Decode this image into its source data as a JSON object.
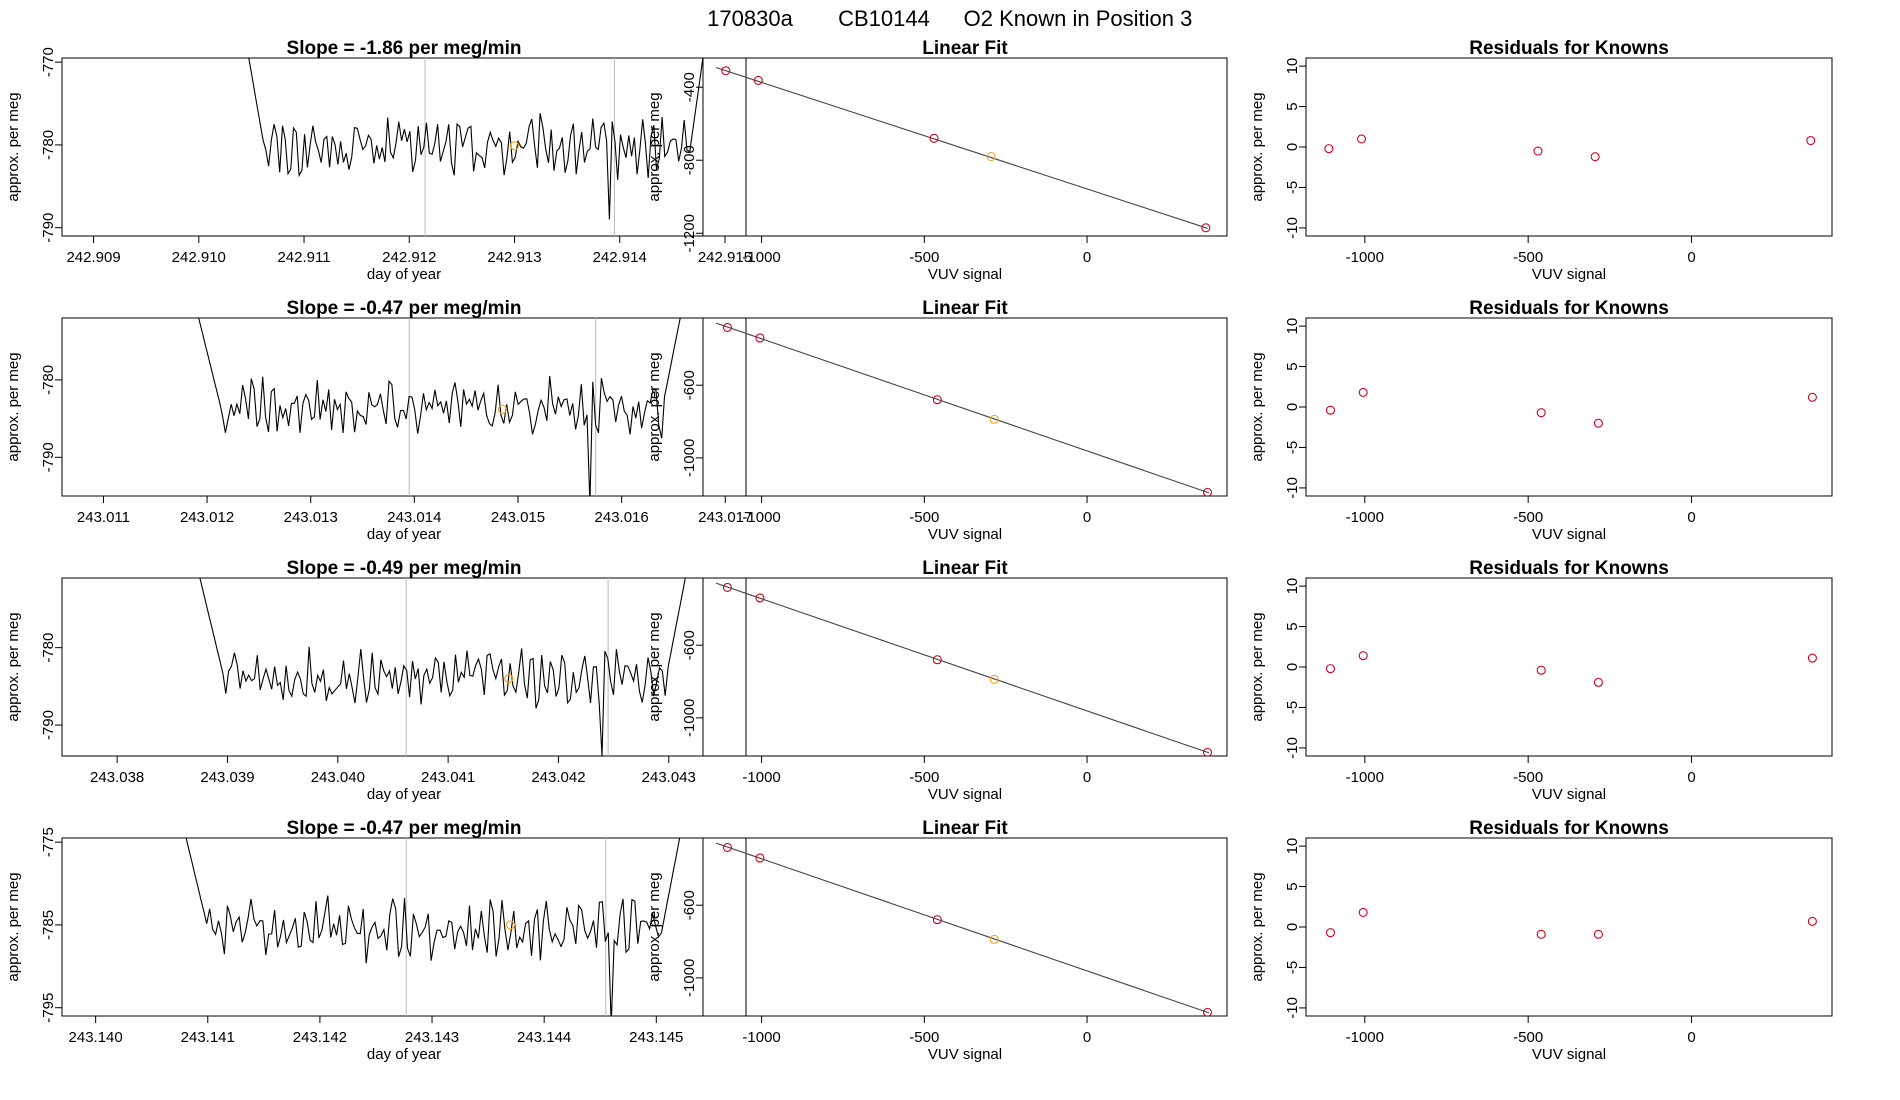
{
  "figure_title": {
    "run": "170830a",
    "cylinder": "CB10144",
    "description": "O2 Known in Position  3"
  },
  "colors": {
    "series_line": "#000000",
    "highlight_point": "#f5a623",
    "residual_point": "#d0021b",
    "fit_line": "#444444",
    "vertical_marker": "#bbbbbb"
  },
  "chart_data": [
    {
      "type": "line",
      "title": "Slope =  -1.86  per meg/min",
      "xlabel": "day of year",
      "ylabel": "approx. per meg",
      "xlim": [
        242.9087,
        242.9152
      ],
      "ylim": [
        -791,
        -769.5
      ],
      "xticks": [
        "242.909",
        "242.910",
        "242.911",
        "242.912",
        "242.913",
        "242.914",
        "242.915"
      ],
      "yticks": [
        "-790",
        "-780",
        "-770"
      ],
      "vlines": [
        242.91215,
        242.91395
      ],
      "highlight": {
        "x": 242.913,
        "y": -780.1
      },
      "trace": {
        "x_start": 242.9104,
        "x_end": 242.91485,
        "y_first": -764,
        "y_last": -764,
        "mean": -780.3,
        "noise": 2.6,
        "spike_at": 242.9139,
        "spike_value": -789,
        "n": 170
      }
    },
    {
      "type": "scatter",
      "title": "Linear Fit",
      "xlabel": "VUV signal",
      "ylabel": "approx. per meg",
      "xlim": [
        -1180,
        430
      ],
      "ylim": [
        -1215,
        -240
      ],
      "xticks": [
        "-1000",
        "-500",
        "0"
      ],
      "yticks": [
        "-400",
        "-800",
        "-1200"
      ],
      "points": [
        {
          "x": -1110,
          "y": -310,
          "highlight": false
        },
        {
          "x": -1010,
          "y": -363,
          "highlight": false
        },
        {
          "x": -470,
          "y": -680,
          "highlight": false
        },
        {
          "x": -295,
          "y": -780,
          "highlight": true
        },
        {
          "x": 365,
          "y": -1170,
          "highlight": false
        }
      ],
      "fit": [
        [
          -1140,
          -292
        ],
        [
          370,
          -1173
        ]
      ]
    },
    {
      "type": "scatter",
      "title": "Residuals for Knowns",
      "xlabel": "VUV signal",
      "ylabel": "approx. per meg",
      "xlim": [
        -1180,
        430
      ],
      "ylim": [
        -11,
        11
      ],
      "xticks": [
        "-1000",
        "-500",
        "0"
      ],
      "yticks": [
        "10",
        "5",
        "0",
        "-5",
        "-10"
      ],
      "points": [
        {
          "x": -1110,
          "y": -0.2
        },
        {
          "x": -1010,
          "y": 1.0
        },
        {
          "x": -470,
          "y": -0.5
        },
        {
          "x": -295,
          "y": -1.2
        },
        {
          "x": 365,
          "y": 0.8
        }
      ]
    },
    {
      "type": "line",
      "title": "Slope =  -0.47  per meg/min",
      "xlabel": "day of year",
      "ylabel": "approx. per meg",
      "xlim": [
        243.0106,
        243.0172
      ],
      "ylim": [
        -795,
        -772
      ],
      "xticks": [
        "243.011",
        "243.012",
        "243.013",
        "243.014",
        "243.015",
        "243.016",
        "243.017"
      ],
      "yticks": [
        "-790",
        "-780"
      ],
      "vlines": [
        243.01395,
        243.01575
      ],
      "highlight": {
        "x": 243.01485,
        "y": -783.8
      },
      "trace": {
        "x_start": 243.0119,
        "x_end": 243.01658,
        "y_first": -771,
        "y_last": -771,
        "mean": -783.6,
        "noise": 2.6,
        "spike_at": 243.0157,
        "spike_value": -796,
        "n": 170
      }
    },
    {
      "type": "scatter",
      "title": "Linear Fit",
      "xlabel": "VUV signal",
      "ylabel": "approx. per meg",
      "xlim": [
        -1180,
        430
      ],
      "ylim": [
        -1210,
        -230
      ],
      "xticks": [
        "-1000",
        "-500",
        "0"
      ],
      "yticks": [
        "-600",
        "-1000"
      ],
      "points": [
        {
          "x": -1105,
          "y": -282,
          "highlight": false
        },
        {
          "x": -1005,
          "y": -340,
          "highlight": false
        },
        {
          "x": -460,
          "y": -680,
          "highlight": false
        },
        {
          "x": -285,
          "y": -788,
          "highlight": true
        },
        {
          "x": 370,
          "y": -1190,
          "highlight": false
        }
      ],
      "fit": [
        [
          -1140,
          -258
        ],
        [
          375,
          -1193
        ]
      ]
    },
    {
      "type": "scatter",
      "title": "Residuals for Knowns",
      "xlabel": "VUV signal",
      "ylabel": "approx. per meg",
      "xlim": [
        -1180,
        430
      ],
      "ylim": [
        -11,
        11
      ],
      "xticks": [
        "-1000",
        "-500",
        "0"
      ],
      "yticks": [
        "10",
        "5",
        "0",
        "-5",
        "-10"
      ],
      "points": [
        {
          "x": -1105,
          "y": -0.4
        },
        {
          "x": -1005,
          "y": 1.8
        },
        {
          "x": -460,
          "y": -0.7
        },
        {
          "x": -285,
          "y": -2.0
        },
        {
          "x": 370,
          "y": 1.2
        }
      ]
    },
    {
      "type": "line",
      "title": "Slope =  -0.49  per meg/min",
      "xlabel": "day of year",
      "ylabel": "approx. per meg",
      "xlim": [
        243.0375,
        243.0437
      ],
      "ylim": [
        -794,
        -771
      ],
      "xticks": [
        "243.038",
        "243.039",
        "243.040",
        "243.041",
        "243.042",
        "243.043"
      ],
      "yticks": [
        "-790",
        "-780"
      ],
      "vlines": [
        243.04062,
        243.04245
      ],
      "highlight": {
        "x": 243.04155,
        "y": -784.0
      },
      "trace": {
        "x_start": 243.03875,
        "x_end": 243.04315,
        "y_first": -771,
        "y_last": -771,
        "mean": -784.0,
        "noise": 2.6,
        "spike_at": 243.0424,
        "spike_value": -794,
        "n": 170
      }
    },
    {
      "type": "scatter",
      "title": "Linear Fit",
      "xlabel": "VUV signal",
      "ylabel": "approx. per meg",
      "xlim": [
        -1180,
        430
      ],
      "ylim": [
        -1210,
        -230
      ],
      "xticks": [
        "-1000",
        "-500",
        "0"
      ],
      "yticks": [
        "-600",
        "-1000"
      ],
      "points": [
        {
          "x": -1105,
          "y": -282,
          "highlight": false
        },
        {
          "x": -1005,
          "y": -340,
          "highlight": false
        },
        {
          "x": -460,
          "y": -680,
          "highlight": false
        },
        {
          "x": -285,
          "y": -788,
          "highlight": true
        },
        {
          "x": 370,
          "y": -1190,
          "highlight": false
        }
      ],
      "fit": [
        [
          -1140,
          -258
        ],
        [
          375,
          -1193
        ]
      ]
    },
    {
      "type": "scatter",
      "title": "Residuals for Knowns",
      "xlabel": "VUV signal",
      "ylabel": "approx. per meg",
      "xlim": [
        -1180,
        430
      ],
      "ylim": [
        -11,
        11
      ],
      "xticks": [
        "-1000",
        "-500",
        "0"
      ],
      "yticks": [
        "10",
        "5",
        "0",
        "-5",
        "-10"
      ],
      "points": [
        {
          "x": -1105,
          "y": -0.2
        },
        {
          "x": -1005,
          "y": 1.4
        },
        {
          "x": -460,
          "y": -0.4
        },
        {
          "x": -285,
          "y": -1.9
        },
        {
          "x": 370,
          "y": 1.1
        }
      ]
    },
    {
      "type": "line",
      "title": "Slope =  -0.47  per meg/min",
      "xlabel": "day of year",
      "ylabel": "approx. per meg",
      "xlim": [
        243.1397,
        243.1458
      ],
      "ylim": [
        -796,
        -774.5
      ],
      "xticks": [
        "243.140",
        "243.141",
        "243.142",
        "243.143",
        "243.144",
        "243.145"
      ],
      "yticks": [
        "-795",
        "-785",
        "-775"
      ],
      "vlines": [
        243.14277,
        243.14455
      ],
      "highlight": {
        "x": 243.1437,
        "y": -785.0
      },
      "trace": {
        "x_start": 243.14078,
        "x_end": 243.14523,
        "y_first": -773,
        "y_last": -773,
        "mean": -785.5,
        "noise": 2.6,
        "spike_at": 243.1446,
        "spike_value": -797,
        "n": 170
      }
    },
    {
      "type": "scatter",
      "title": "Linear Fit",
      "xlabel": "VUV signal",
      "ylabel": "approx. per meg",
      "xlim": [
        -1180,
        430
      ],
      "ylim": [
        -1210,
        -230
      ],
      "xticks": [
        "-1000",
        "-500",
        "0"
      ],
      "yticks": [
        "-600",
        "-1000"
      ],
      "points": [
        {
          "x": -1105,
          "y": -282,
          "highlight": false
        },
        {
          "x": -1005,
          "y": -340,
          "highlight": false
        },
        {
          "x": -460,
          "y": -680,
          "highlight": false
        },
        {
          "x": -285,
          "y": -788,
          "highlight": true
        },
        {
          "x": 370,
          "y": -1190,
          "highlight": false
        }
      ],
      "fit": [
        [
          -1140,
          -258
        ],
        [
          375,
          -1193
        ]
      ]
    },
    {
      "type": "scatter",
      "title": "Residuals for Knowns",
      "xlabel": "VUV signal",
      "ylabel": "approx. per meg",
      "xlim": [
        -1180,
        430
      ],
      "ylim": [
        -11,
        11
      ],
      "xticks": [
        "-1000",
        "-500",
        "0"
      ],
      "yticks": [
        "10",
        "5",
        "0",
        "-5",
        "-10"
      ],
      "points": [
        {
          "x": -1105,
          "y": -0.7
        },
        {
          "x": -1005,
          "y": 1.8
        },
        {
          "x": -460,
          "y": -0.9
        },
        {
          "x": -285,
          "y": -0.9
        },
        {
          "x": 370,
          "y": 0.7
        }
      ]
    }
  ]
}
